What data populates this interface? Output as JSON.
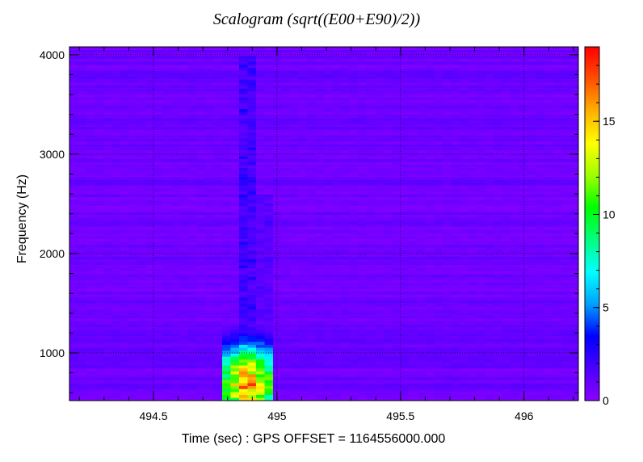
{
  "chart_data": {
    "type": "heatmap",
    "title": "Scalogram (sqrt((E00+E90)/2))",
    "xlabel": "Time (sec) : GPS OFFSET = 1164556000.000",
    "ylabel": "Frequency (Hz)",
    "xlim": [
      494.16,
      496.22
    ],
    "ylim": [
      520,
      4080
    ],
    "xticks": [
      494.5,
      495,
      495.5,
      496
    ],
    "xtick_labels": [
      "494.5",
      "495",
      "495.5",
      "496"
    ],
    "yticks": [
      1000,
      2000,
      3000,
      4000
    ],
    "ytick_labels": [
      "1000",
      "2000",
      "3000",
      "4000"
    ],
    "colorbar": {
      "range": [
        0,
        19
      ],
      "ticks": [
        0,
        5,
        10,
        15
      ],
      "tick_labels": [
        "0",
        "5",
        "10",
        "15"
      ],
      "colormap": "rainbow"
    },
    "background_level": 0.8,
    "grid": true,
    "features": [
      {
        "t_start": 494.79,
        "t_end": 494.99,
        "f_low": 520,
        "f_high": 1300,
        "peak": 17,
        "t_peak": 494.88,
        "f_peak": 700
      },
      {
        "t_start": 494.84,
        "t_end": 494.92,
        "f_low": 520,
        "f_high": 4000,
        "peak": 3.2,
        "t_peak": 494.88
      },
      {
        "t_start": 494.92,
        "t_end": 494.98,
        "f_low": 520,
        "f_high": 2600,
        "peak": 2.5,
        "t_peak": 494.95
      }
    ]
  },
  "colors": {
    "colorbar_stops": [
      "#8a00ff",
      "#4b00ff",
      "#0000ff",
      "#00a0ff",
      "#00ffff",
      "#00ff80",
      "#00ff00",
      "#a0ff00",
      "#ffff00",
      "#ffb000",
      "#ff5000",
      "#ff0000"
    ]
  }
}
